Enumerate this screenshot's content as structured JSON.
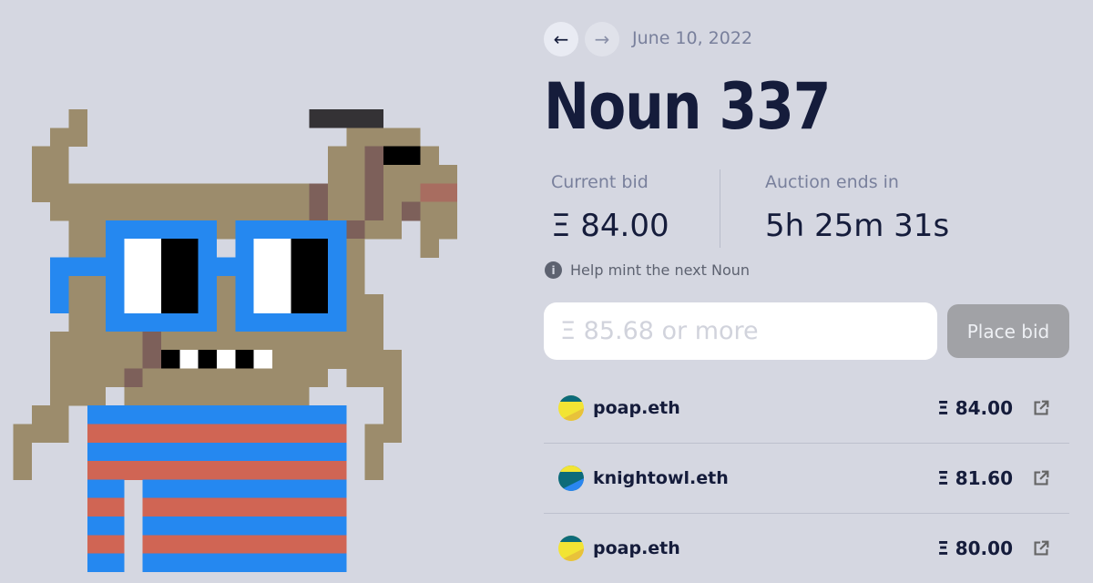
{
  "nav": {
    "prev_icon": "arrow-left-icon",
    "next_icon": "arrow-right-icon",
    "prev_glyph": "←",
    "next_glyph": "→",
    "date": "June 10, 2022"
  },
  "title": "Noun 337",
  "current_bid": {
    "label": "Current bid",
    "value": "Ξ 84.00"
  },
  "auction": {
    "label": "Auction ends in",
    "value": "5h 25m 31s"
  },
  "help": {
    "icon": "info-icon",
    "glyph": "i",
    "text": "Help mint the next Noun"
  },
  "bid_input": {
    "placeholder": "Ξ 85.68 or more",
    "value": ""
  },
  "place_bid_label": "Place bid",
  "bids": [
    {
      "bidder": "poap.eth",
      "amount": "Ξ 84.00",
      "avatar_colors": [
        "#f2e434",
        "#e8c23a",
        "#0d6b7a"
      ]
    },
    {
      "bidder": "knightowl.eth",
      "amount": "Ξ 81.60",
      "avatar_colors": [
        "#0d6b7a",
        "#2a86f0",
        "#f2e434"
      ]
    },
    {
      "bidder": "poap.eth",
      "amount": "Ξ 80.00",
      "avatar_colors": [
        "#f2e434",
        "#e8c23a",
        "#0d6b7a"
      ]
    }
  ],
  "noun_palette": {
    "background": "#d5d7e1",
    "skin": "#9c8c6c",
    "dark_skin": "#7d605a",
    "glasses": "#2588f0",
    "shirt_red": "#d06554",
    "hat": "#343235",
    "cheek": "#a86d60"
  }
}
